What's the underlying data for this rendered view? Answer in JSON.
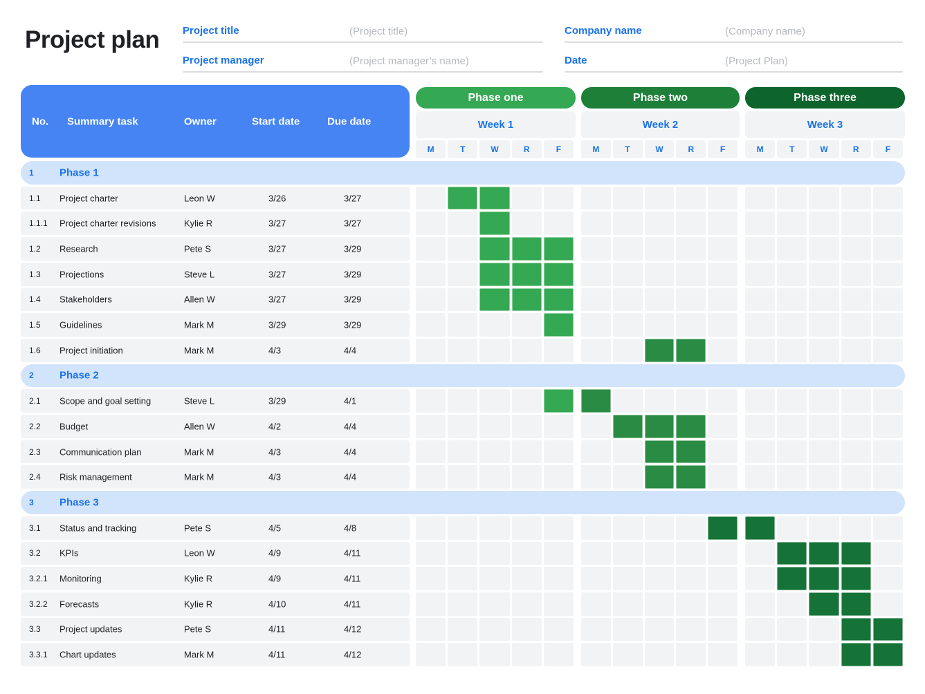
{
  "page": {
    "title": "Project plan"
  },
  "form": {
    "fields": [
      {
        "label": "Project title",
        "placeholder": "(Project title)"
      },
      {
        "label": "Project manager",
        "placeholder": "(Project manager’s name)"
      },
      {
        "label": "Company name",
        "placeholder": "(Company name)"
      },
      {
        "label": "Date",
        "placeholder": "(Project Plan)"
      }
    ]
  },
  "table": {
    "columns": [
      "No.",
      "Summary task",
      "Owner",
      "Start date",
      "Due date"
    ],
    "phases": [
      {
        "label": "Phase one",
        "color": "#34a853"
      },
      {
        "label": "Phase two",
        "color": "#1e8038"
      },
      {
        "label": "Phase three",
        "color": "#0d652d"
      }
    ],
    "weeks": [
      "Week 1",
      "Week 2",
      "Week 3"
    ],
    "days": [
      "M",
      "T",
      "W",
      "R",
      "F"
    ],
    "bar_colors": {
      "1": "#34a853",
      "2": "#2a8c44",
      "3": "#157337"
    },
    "rows": [
      {
        "type": "phase",
        "no": "1",
        "task": "Phase 1"
      },
      {
        "type": "task",
        "no": "1.1",
        "task": "Project charter",
        "owner": "Leon W",
        "start": "3/26",
        "due": "3/27",
        "cells": [
          0,
          1,
          1,
          0,
          0,
          0,
          0,
          0,
          0,
          0,
          0,
          0,
          0,
          0,
          0
        ]
      },
      {
        "type": "task",
        "no": "1.1.1",
        "task": "Project charter revisions",
        "owner": "Kylie R",
        "start": "3/27",
        "due": "3/27",
        "cells": [
          0,
          0,
          1,
          0,
          0,
          0,
          0,
          0,
          0,
          0,
          0,
          0,
          0,
          0,
          0
        ]
      },
      {
        "type": "task",
        "no": "1.2",
        "task": "Research",
        "owner": "Pete S",
        "start": "3/27",
        "due": "3/29",
        "cells": [
          0,
          0,
          1,
          1,
          1,
          0,
          0,
          0,
          0,
          0,
          0,
          0,
          0,
          0,
          0
        ]
      },
      {
        "type": "task",
        "no": "1.3",
        "task": "Projections",
        "owner": "Steve L",
        "start": "3/27",
        "due": "3/29",
        "cells": [
          0,
          0,
          1,
          1,
          1,
          0,
          0,
          0,
          0,
          0,
          0,
          0,
          0,
          0,
          0
        ]
      },
      {
        "type": "task",
        "no": "1.4",
        "task": "Stakeholders",
        "owner": "Allen W",
        "start": "3/27",
        "due": "3/29",
        "cells": [
          0,
          0,
          1,
          1,
          1,
          0,
          0,
          0,
          0,
          0,
          0,
          0,
          0,
          0,
          0
        ]
      },
      {
        "type": "task",
        "no": "1.5",
        "task": "Guidelines",
        "owner": "Mark M",
        "start": "3/29",
        "due": "3/29",
        "cells": [
          0,
          0,
          0,
          0,
          1,
          0,
          0,
          0,
          0,
          0,
          0,
          0,
          0,
          0,
          0
        ]
      },
      {
        "type": "task",
        "no": "1.6",
        "task": "Project initiation",
        "owner": "Mark M",
        "start": "4/3",
        "due": "4/4",
        "cells": [
          0,
          0,
          0,
          0,
          0,
          0,
          0,
          2,
          2,
          0,
          0,
          0,
          0,
          0,
          0
        ]
      },
      {
        "type": "phase",
        "no": "2",
        "task": "Phase 2"
      },
      {
        "type": "task",
        "no": "2.1",
        "task": "Scope and goal setting",
        "owner": "Steve L",
        "start": "3/29",
        "due": "4/1",
        "cells": [
          0,
          0,
          0,
          0,
          1,
          2,
          0,
          0,
          0,
          0,
          0,
          0,
          0,
          0,
          0
        ]
      },
      {
        "type": "task",
        "no": "2.2",
        "task": "Budget",
        "owner": "Allen W",
        "start": "4/2",
        "due": "4/4",
        "cells": [
          0,
          0,
          0,
          0,
          0,
          0,
          2,
          2,
          2,
          0,
          0,
          0,
          0,
          0,
          0
        ]
      },
      {
        "type": "task",
        "no": "2.3",
        "task": "Communication plan",
        "owner": "Mark M",
        "start": "4/3",
        "due": "4/4",
        "cells": [
          0,
          0,
          0,
          0,
          0,
          0,
          0,
          2,
          2,
          0,
          0,
          0,
          0,
          0,
          0
        ]
      },
      {
        "type": "task",
        "no": "2.4",
        "task": "Risk management",
        "owner": "Mark M",
        "start": "4/3",
        "due": "4/4",
        "cells": [
          0,
          0,
          0,
          0,
          0,
          0,
          0,
          2,
          2,
          0,
          0,
          0,
          0,
          0,
          0
        ]
      },
      {
        "type": "phase",
        "no": "3",
        "task": "Phase 3"
      },
      {
        "type": "task",
        "no": "3.1",
        "task": "Status and tracking",
        "owner": "Pete S",
        "start": "4/5",
        "due": "4/8",
        "cells": [
          0,
          0,
          0,
          0,
          0,
          0,
          0,
          0,
          0,
          3,
          3,
          0,
          0,
          0,
          0
        ]
      },
      {
        "type": "task",
        "no": "3.2",
        "task": "KPIs",
        "owner": "Leon W",
        "start": "4/9",
        "due": "4/11",
        "cells": [
          0,
          0,
          0,
          0,
          0,
          0,
          0,
          0,
          0,
          0,
          0,
          3,
          3,
          3,
          0
        ]
      },
      {
        "type": "task",
        "no": "3.2.1",
        "task": "Monitoring",
        "owner": "Kylie R",
        "start": "4/9",
        "due": "4/11",
        "cells": [
          0,
          0,
          0,
          0,
          0,
          0,
          0,
          0,
          0,
          0,
          0,
          3,
          3,
          3,
          0
        ]
      },
      {
        "type": "task",
        "no": "3.2.2",
        "task": "Forecasts",
        "owner": "Kylie R",
        "start": "4/10",
        "due": "4/11",
        "cells": [
          0,
          0,
          0,
          0,
          0,
          0,
          0,
          0,
          0,
          0,
          0,
          0,
          3,
          3,
          0
        ]
      },
      {
        "type": "task",
        "no": "3.3",
        "task": "Project updates",
        "owner": "Pete S",
        "start": "4/11",
        "due": "4/12",
        "cells": [
          0,
          0,
          0,
          0,
          0,
          0,
          0,
          0,
          0,
          0,
          0,
          0,
          0,
          3,
          3
        ]
      },
      {
        "type": "task",
        "no": "3.3.1",
        "task": "Chart updates",
        "owner": "Mark M",
        "start": "4/11",
        "due": "4/12",
        "cells": [
          0,
          0,
          0,
          0,
          0,
          0,
          0,
          0,
          0,
          0,
          0,
          0,
          0,
          3,
          3
        ]
      }
    ]
  }
}
